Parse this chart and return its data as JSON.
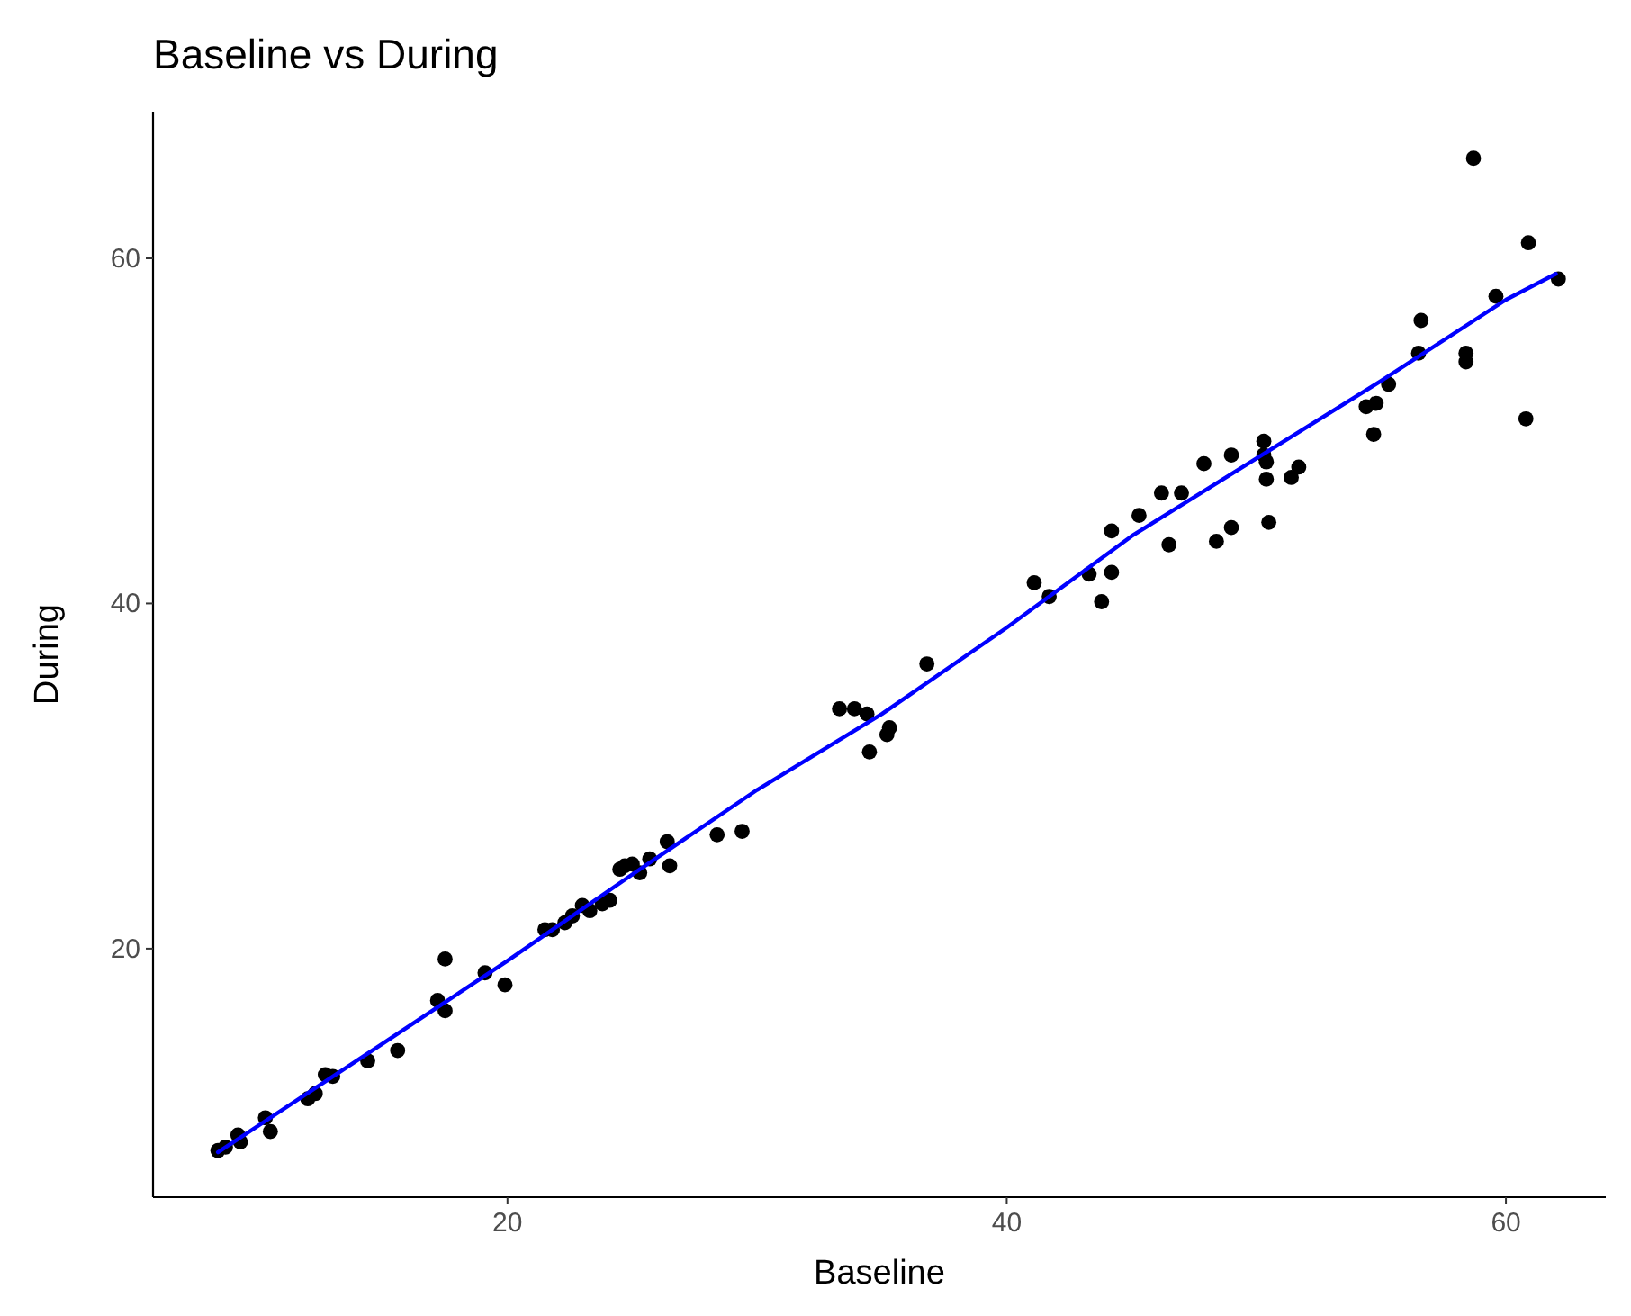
{
  "chart_data": {
    "type": "scatter",
    "title": "Baseline vs During",
    "xlabel": "Baseline",
    "ylabel": "During",
    "xlim": [
      5.8,
      64
    ],
    "ylim": [
      5.6,
      68.5
    ],
    "xticks": [
      20,
      40,
      60
    ],
    "yticks": [
      20,
      40,
      60
    ],
    "grid": false,
    "marker": "circle",
    "series": [
      {
        "color": "#000000",
        "x": [
          8.4,
          8.7,
          9.2,
          9.3,
          10.3,
          10.5,
          12.0,
          12.3,
          12.7,
          13.0,
          14.4,
          15.6,
          17.2,
          17.5,
          17.5,
          19.1,
          19.9,
          21.5,
          21.8,
          22.3,
          22.6,
          23.0,
          23.3,
          23.8,
          24.1,
          24.5,
          24.7,
          25.0,
          25.3,
          25.7,
          26.4,
          26.5,
          28.4,
          29.4,
          33.3,
          33.9,
          34.4,
          34.5,
          35.2,
          35.3,
          36.8,
          41.1,
          41.7,
          43.3,
          43.8,
          44.2,
          44.2,
          45.3,
          46.2,
          46.5,
          47.0,
          47.9,
          48.4,
          49.0,
          49.0,
          50.3,
          50.3,
          50.4,
          50.4,
          50.5,
          51.4,
          51.7,
          54.4,
          54.7,
          54.8,
          55.3,
          56.5,
          56.6,
          58.4,
          58.4,
          58.7,
          59.6,
          60.8,
          60.9,
          62.1
        ],
        "values": [
          8.3,
          8.5,
          9.2,
          8.8,
          10.2,
          9.4,
          11.3,
          11.6,
          12.7,
          12.6,
          13.5,
          14.1,
          17.0,
          19.4,
          16.4,
          18.6,
          17.9,
          21.1,
          21.1,
          21.5,
          21.9,
          22.5,
          22.2,
          22.6,
          22.8,
          24.6,
          24.8,
          24.9,
          24.4,
          25.2,
          26.2,
          24.8,
          26.6,
          26.8,
          33.9,
          33.9,
          33.6,
          31.4,
          32.4,
          32.8,
          36.5,
          41.2,
          40.4,
          41.7,
          40.1,
          41.8,
          44.2,
          45.1,
          46.4,
          43.4,
          46.4,
          48.1,
          43.6,
          48.6,
          44.4,
          49.4,
          48.6,
          47.2,
          48.2,
          44.7,
          47.3,
          47.9,
          51.4,
          49.8,
          51.6,
          52.7,
          54.5,
          56.4,
          54.5,
          54.0,
          65.8,
          57.8,
          50.7,
          60.9,
          58.8
        ]
      },
      {
        "type": "line",
        "color": "#0000ff",
        "marker": "none",
        "line_style": "solid",
        "x": [
          8.4,
          15,
          20,
          25,
          30,
          35,
          40,
          45,
          50,
          55,
          60,
          62
        ],
        "values": [
          8.2,
          14.5,
          19.3,
          24.3,
          29.2,
          33.6,
          38.6,
          43.9,
          48.4,
          52.9,
          57.6,
          59.1
        ]
      }
    ]
  }
}
